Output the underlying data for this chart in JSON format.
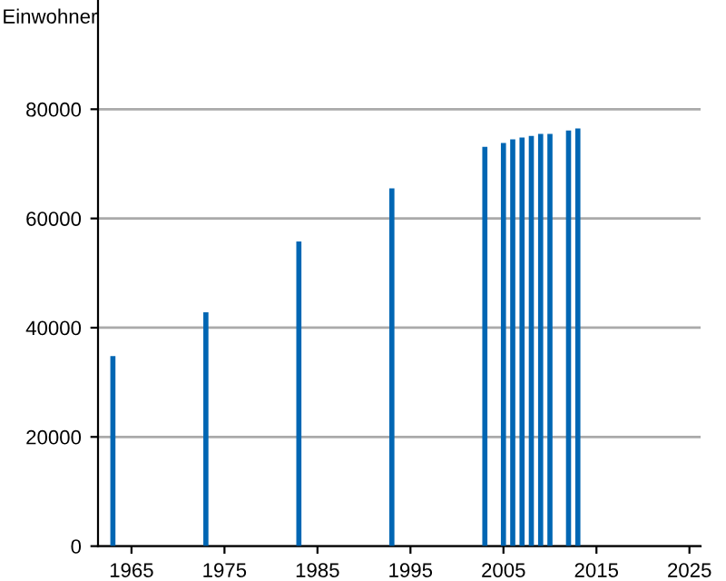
{
  "chart_data": {
    "type": "bar",
    "ylabel": "Einwohner",
    "x": [
      1963,
      1973,
      1983,
      1993,
      2003,
      2005,
      2006,
      2007,
      2008,
      2009,
      2010,
      2012,
      2013
    ],
    "series": [
      {
        "color": "#0066b3",
        "values": [
          34800,
          42800,
          55800,
          65500,
          73100,
          73800,
          74500,
          74800,
          75100,
          75500,
          75500,
          76100,
          76500
        ]
      }
    ],
    "xlim": [
      1961.4,
      2026.2
    ],
    "xticks": [
      1965,
      1975,
      1985,
      1995,
      2005,
      2015,
      2025
    ],
    "ylim": [
      0,
      100000
    ],
    "yticks": [
      0,
      20000,
      40000,
      60000,
      80000
    ],
    "grid": "y",
    "legend": false
  }
}
